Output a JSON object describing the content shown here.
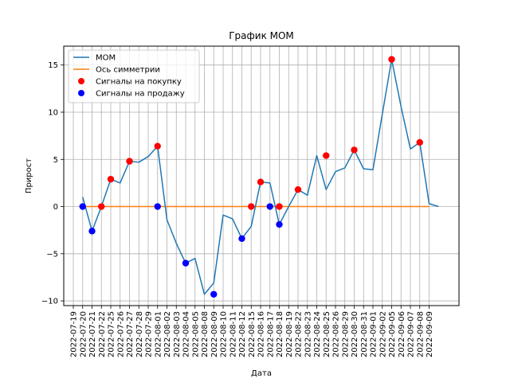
{
  "chart_data": {
    "type": "line",
    "title": "График MOM",
    "xlabel": "Дата",
    "ylabel": "Прирост",
    "ylim": [
      -10.5,
      17
    ],
    "yticks": [
      -10,
      -5,
      0,
      5,
      10,
      15
    ],
    "grid": true,
    "legend_position": "top-left",
    "colors": {
      "mom": "#1f77b4",
      "symmetry": "#ff7f0e",
      "buy": "#ff0000",
      "sell": "#0000ff"
    },
    "x": [
      "2022-07-19",
      "2022-07-20",
      "2022-07-21",
      "2022-07-22",
      "2022-07-25",
      "2022-07-26",
      "2022-07-27",
      "2022-07-28",
      "2022-07-29",
      "2022-08-01",
      "2022-08-02",
      "2022-08-03",
      "2022-08-04",
      "2022-08-05",
      "2022-08-08",
      "2022-08-09",
      "2022-08-10",
      "2022-08-11",
      "2022-08-12",
      "2022-08-15",
      "2022-08-16",
      "2022-08-17",
      "2022-08-18",
      "2022-08-19",
      "2022-08-22",
      "2022-08-23",
      "2022-08-24",
      "2022-08-25",
      "2022-08-26",
      "2022-08-29",
      "2022-08-30",
      "2022-08-31",
      "2022-09-01",
      "2022-09-02",
      "2022-09-05",
      "2022-09-06",
      "2022-09-07",
      "2022-09-08",
      "2022-09-09"
    ],
    "series": [
      {
        "name": "MOM",
        "kind": "line",
        "values": [
          1.0,
          -2.6,
          0.0,
          2.9,
          2.5,
          4.8,
          4.7,
          5.3,
          6.4,
          -1.4,
          -3.9,
          -6.0,
          -5.5,
          -9.3,
          -8.1,
          -0.9,
          -1.3,
          -3.4,
          -2.1,
          2.6,
          2.5,
          -1.9,
          0.0,
          1.8,
          1.2,
          5.4,
          1.8,
          3.7,
          4.1,
          6.0,
          4.0,
          3.9,
          9.8,
          15.6,
          10.6,
          6.1,
          6.8,
          0.3,
          0.0
        ],
        "x_start_index": 1
      },
      {
        "name": "Ось симметрии",
        "kind": "line",
        "x_from": "2022-07-20",
        "x_to": "2022-09-09",
        "value": 0
      },
      {
        "name": "Сигналы на покупку",
        "kind": "scatter",
        "points": [
          {
            "x": "2022-07-22",
            "y": 0.0
          },
          {
            "x": "2022-07-25",
            "y": 2.9
          },
          {
            "x": "2022-07-27",
            "y": 4.8
          },
          {
            "x": "2022-08-01",
            "y": 6.4
          },
          {
            "x": "2022-08-15",
            "y": 0.0
          },
          {
            "x": "2022-08-16",
            "y": 2.6
          },
          {
            "x": "2022-08-18",
            "y": 0.0
          },
          {
            "x": "2022-08-22",
            "y": 1.8
          },
          {
            "x": "2022-08-25",
            "y": 5.4
          },
          {
            "x": "2022-08-30",
            "y": 6.0
          },
          {
            "x": "2022-09-05",
            "y": 15.6
          },
          {
            "x": "2022-09-08",
            "y": 6.8
          }
        ]
      },
      {
        "name": "Сигналы на продажу",
        "kind": "scatter",
        "points": [
          {
            "x": "2022-07-20",
            "y": 0.0
          },
          {
            "x": "2022-07-21",
            "y": -2.6
          },
          {
            "x": "2022-08-01",
            "y": 0.0
          },
          {
            "x": "2022-08-04",
            "y": -6.0
          },
          {
            "x": "2022-08-09",
            "y": -9.3
          },
          {
            "x": "2022-08-12",
            "y": -3.4
          },
          {
            "x": "2022-08-17",
            "y": 0.0
          },
          {
            "x": "2022-08-18",
            "y": -1.9
          }
        ]
      }
    ]
  }
}
